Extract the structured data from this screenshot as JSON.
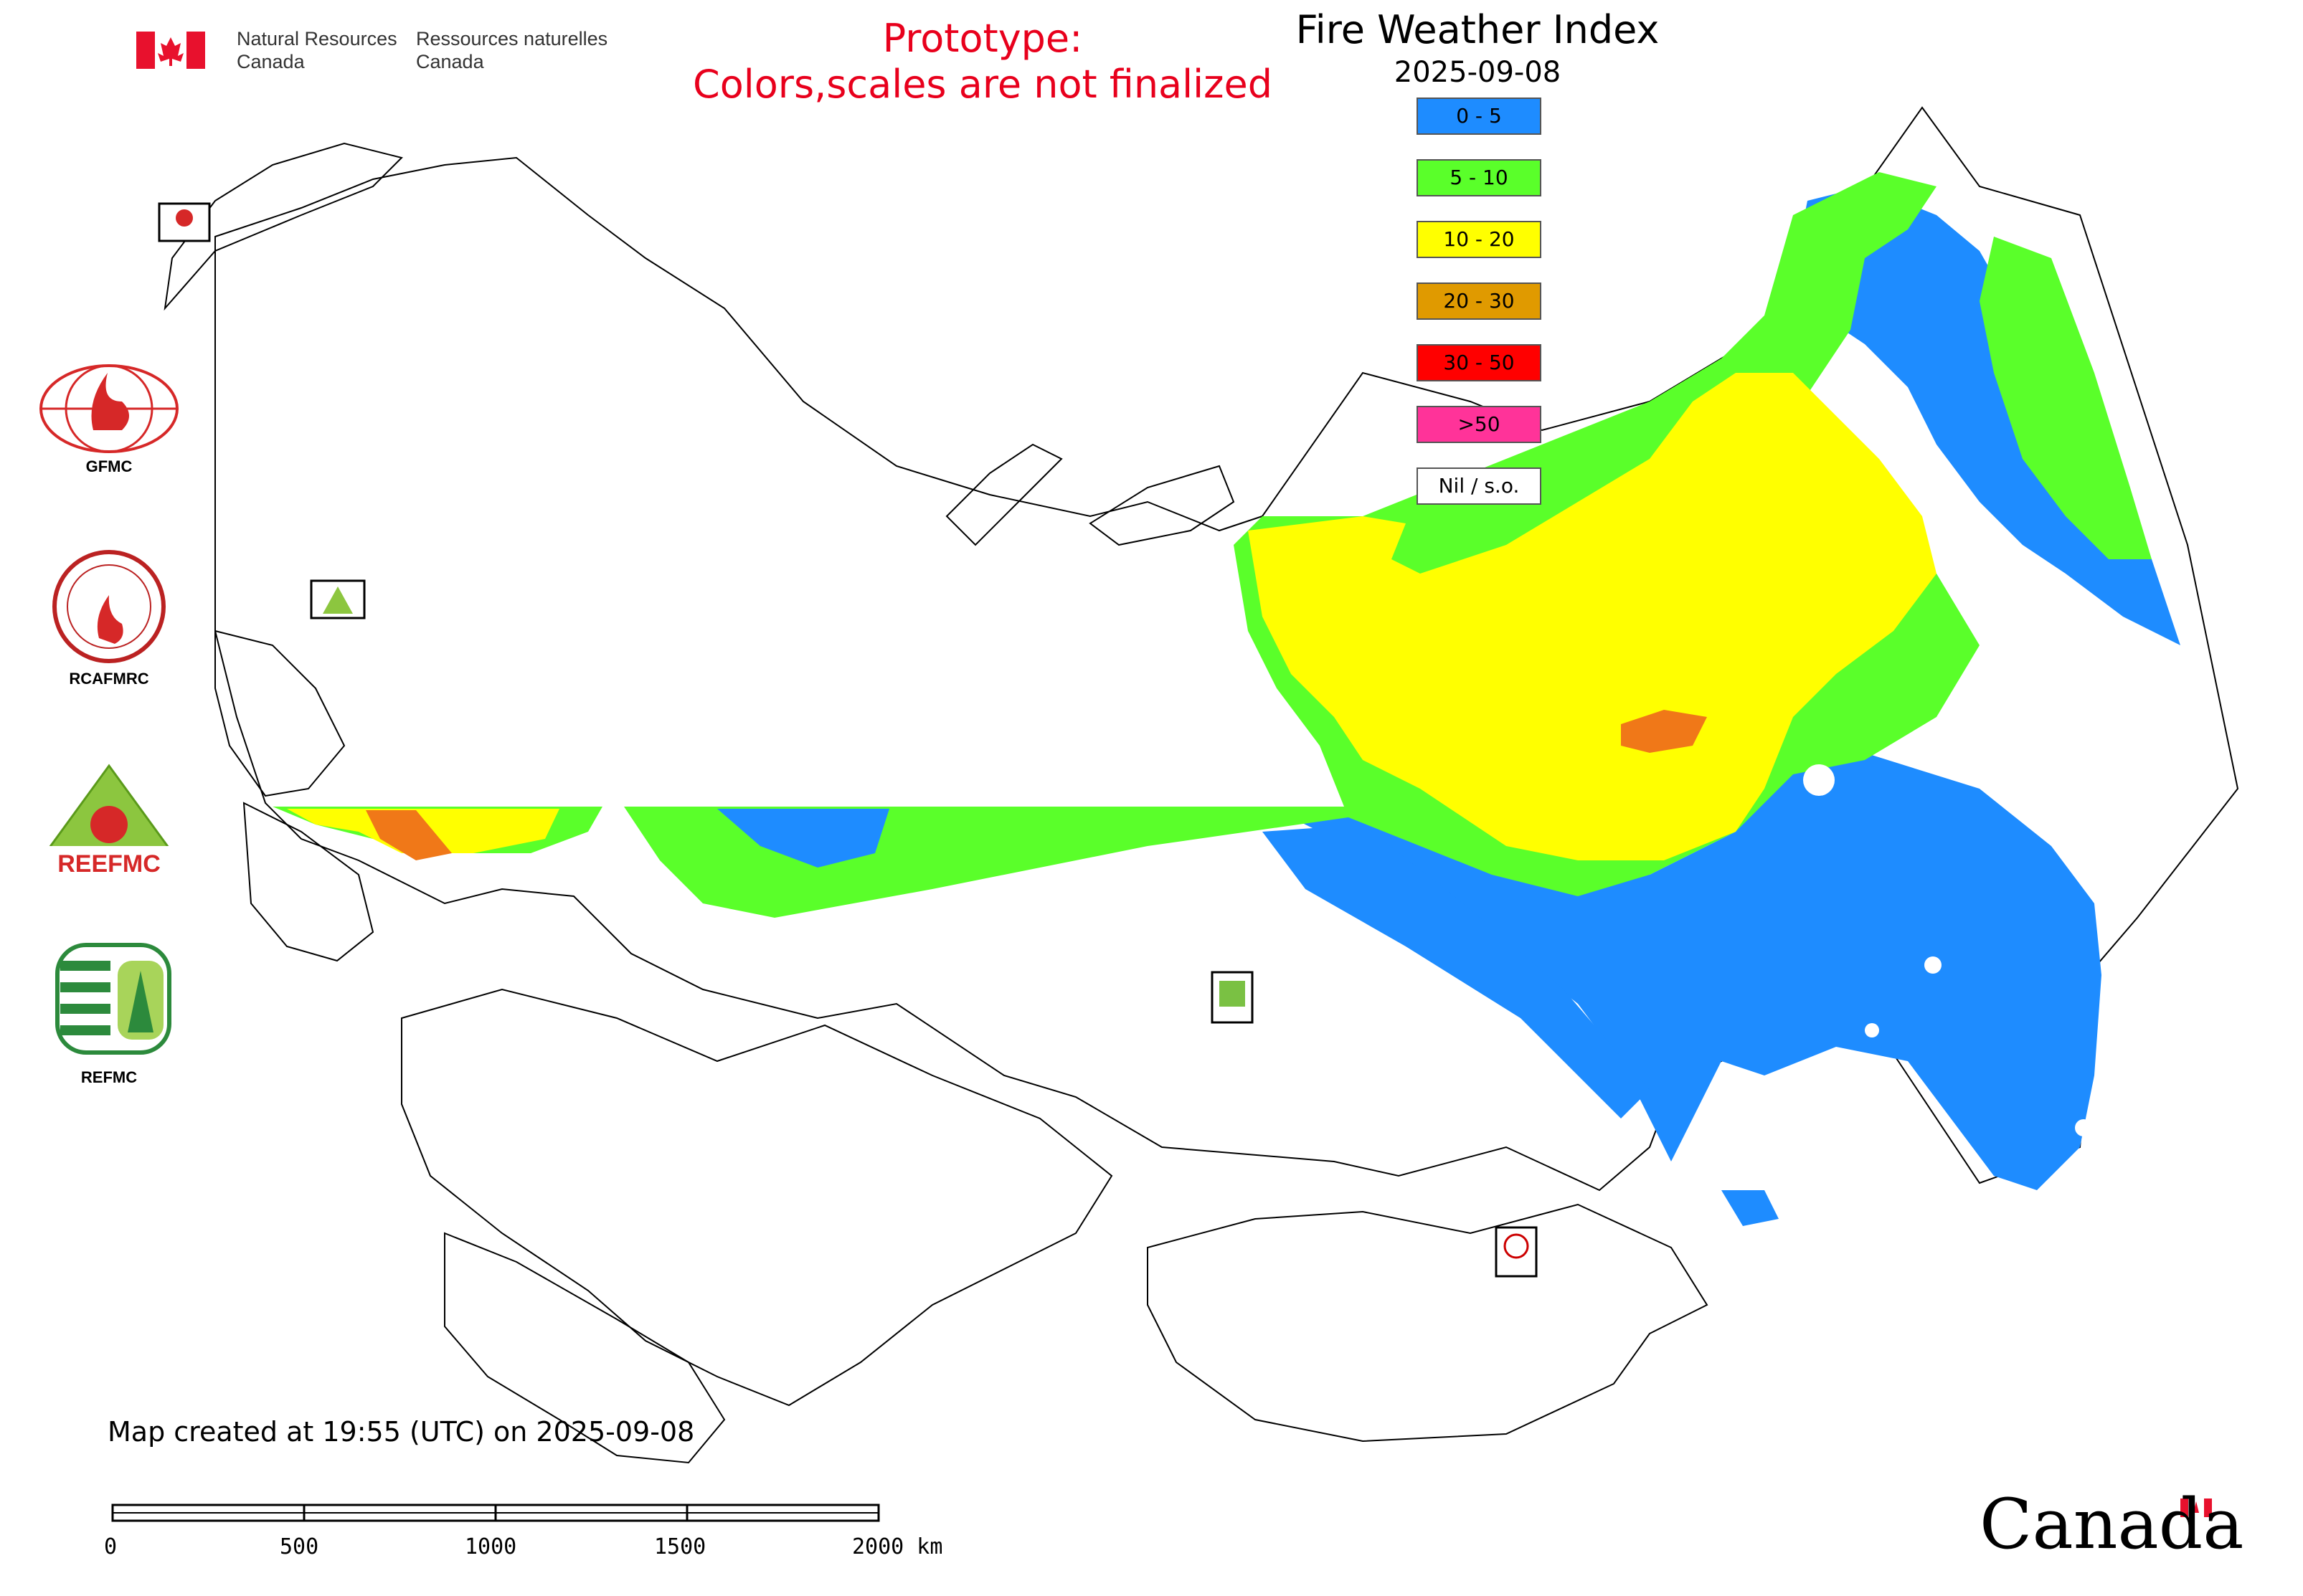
{
  "map": {
    "title": "Fire Weather Index",
    "date": "2025-09-08",
    "prototype_line1": "Prototype:",
    "prototype_line2": "Colors,scales are not finalized",
    "created": "Map created at 19:55 (UTC) on 2025-09-08"
  },
  "agency": {
    "en_line1": "Natural Resources",
    "en_line2": "Canada",
    "fr_line1": "Ressources naturelles",
    "fr_line2": "Canada",
    "wordmark": "Canada"
  },
  "logos": [
    {
      "label": "GFMC"
    },
    {
      "label": "RCAFMRC"
    },
    {
      "label": "REEFMC"
    },
    {
      "label": "REFMC"
    }
  ],
  "legend": [
    {
      "label": "0 - 5",
      "color": "#1e8cff"
    },
    {
      "label": "5 - 10",
      "color": "#5aff2a"
    },
    {
      "label": "10 - 20",
      "color": "#ffff00"
    },
    {
      "label": "20 - 30",
      "color": "#e09a00"
    },
    {
      "label": "30 - 50",
      "color": "#ff0000"
    },
    {
      "label": ">50",
      "color": "#ff3399"
    },
    {
      "label": "Nil / s.o.",
      "color": "#ffffff"
    }
  ],
  "scalebar": {
    "ticks": [
      "0",
      "500",
      "1000",
      "1500",
      "2000 km"
    ]
  }
}
